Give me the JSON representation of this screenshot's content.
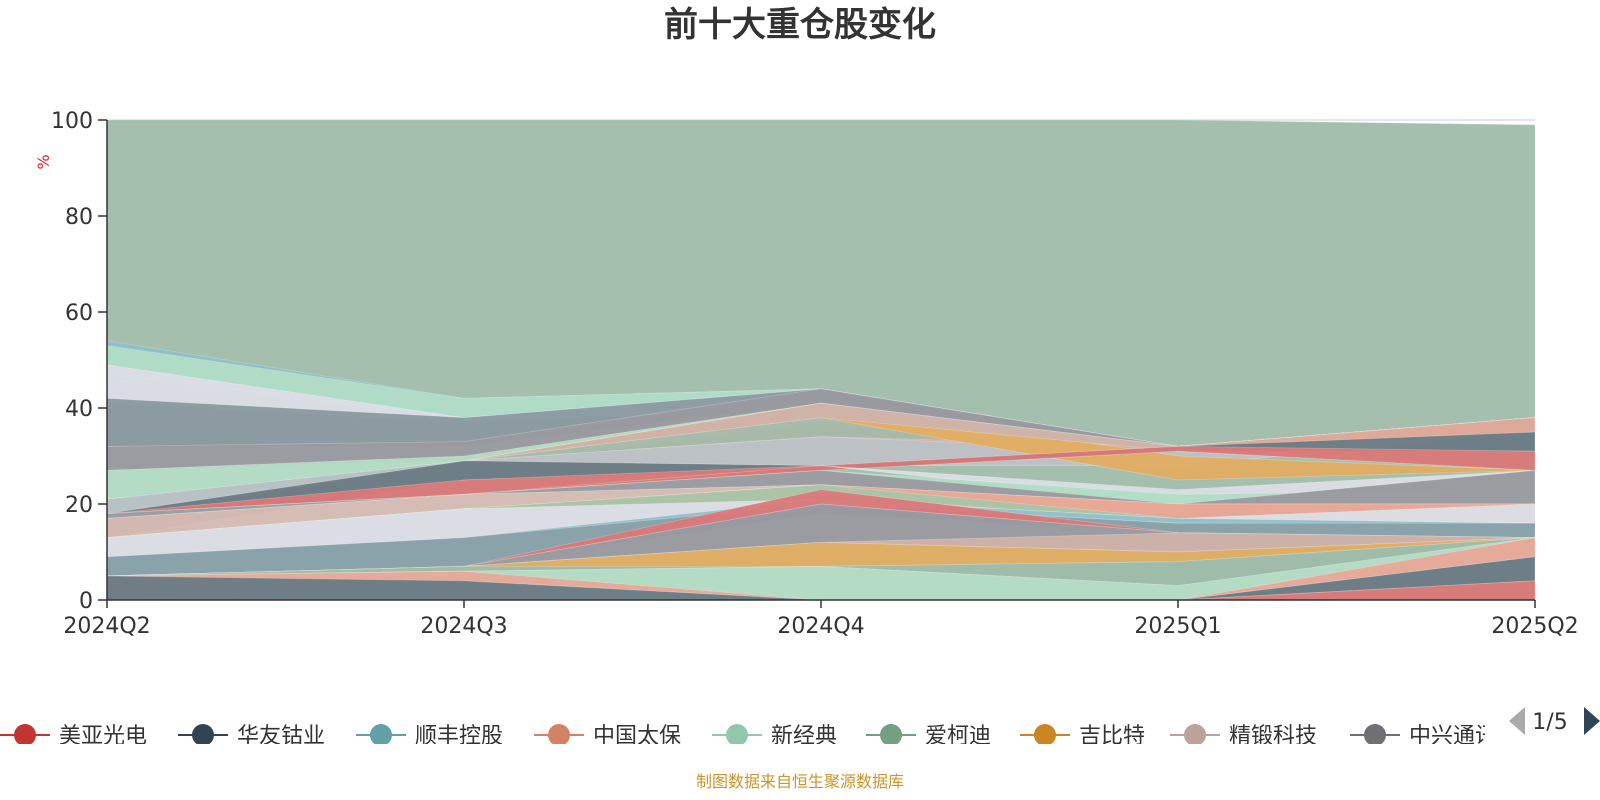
{
  "chart_data": {
    "type": "area",
    "title": "前十大重仓股变化",
    "ylabel": "%",
    "ylim": [
      0,
      100
    ],
    "yticks": [
      0,
      20,
      40,
      60,
      80,
      100
    ],
    "categories": [
      "2024Q2",
      "2024Q3",
      "2024Q4",
      "2025Q1",
      "2025Q2"
    ],
    "grid": true,
    "layers": [
      {
        "color": "#9fbcaa",
        "values": [
          [
            0,
            100
          ],
          [
            0,
            100
          ],
          [
            0,
            100
          ],
          [
            0,
            100
          ],
          [
            0,
            99
          ]
        ]
      },
      {
        "color": "#8fbfc8",
        "values": [
          [
            46,
            54
          ],
          [
            38,
            42
          ],
          [
            43,
            44
          ],
          [
            32,
            32
          ],
          [
            38,
            38
          ]
        ]
      },
      {
        "color": "#b2dcc6",
        "values": [
          [
            47,
            53
          ],
          [
            38,
            42
          ],
          [
            42,
            44
          ],
          [
            32,
            32
          ],
          [
            38,
            38
          ]
        ]
      },
      {
        "color": "#dcdee6",
        "values": [
          [
            41,
            49
          ],
          [
            37,
            38
          ],
          [
            40,
            44
          ],
          [
            32,
            32
          ],
          [
            38,
            38
          ]
        ]
      },
      {
        "color": "#8a99a0",
        "values": [
          [
            32,
            42
          ],
          [
            32,
            38
          ],
          [
            41,
            44
          ],
          [
            31,
            32
          ],
          [
            35,
            38
          ]
        ]
      },
      {
        "color": "#9a9aa0",
        "values": [
          [
            27,
            32
          ],
          [
            29,
            33
          ],
          [
            41,
            44
          ],
          [
            31,
            32
          ],
          [
            35,
            38
          ]
        ]
      },
      {
        "color": "#b5dcc4",
        "values": [
          [
            21,
            27
          ],
          [
            28,
            30
          ],
          [
            37,
            41
          ],
          [
            29,
            32
          ],
          [
            35,
            38
          ]
        ]
      },
      {
        "color": "#a8b8a8",
        "values": [
          [
            17,
            21
          ],
          [
            25,
            29
          ],
          [
            34,
            41
          ],
          [
            29,
            32
          ],
          [
            35,
            38
          ]
        ]
      },
      {
        "color": "#e0a898",
        "values": [
          [
            17,
            18
          ],
          [
            28,
            29
          ],
          [
            28,
            34
          ],
          [
            28,
            32
          ],
          [
            35,
            38
          ]
        ]
      },
      {
        "color": "#b8c2c6",
        "values": [
          [
            17,
            21
          ],
          [
            29,
            29
          ],
          [
            28,
            34
          ],
          [
            28,
            31
          ],
          [
            35,
            35
          ]
        ]
      },
      {
        "color": "#e3ad62",
        "values": [
          [
            13,
            17
          ],
          [
            29,
            29
          ],
          [
            38,
            41
          ],
          [
            25,
            30
          ],
          [
            27,
            27
          ]
        ]
      },
      {
        "color": "#cfb2aa",
        "values": [
          [
            13,
            17
          ],
          [
            29,
            29
          ],
          [
            38,
            41
          ],
          [
            31,
            32
          ],
          [
            27,
            27
          ]
        ]
      },
      {
        "color": "#6a7a84",
        "values": [
          [
            13,
            18
          ],
          [
            25,
            29
          ],
          [
            27,
            28
          ],
          [
            31,
            32
          ],
          [
            31,
            35
          ]
        ]
      },
      {
        "color": "#db7878",
        "values": [
          [
            17,
            18
          ],
          [
            22,
            25
          ],
          [
            27,
            28
          ],
          [
            31,
            32
          ],
          [
            27,
            31
          ]
        ]
      },
      {
        "color": "#dcdee6",
        "values": [
          [
            17,
            18
          ],
          [
            22,
            22
          ],
          [
            28,
            28
          ],
          [
            20,
            23
          ],
          [
            27,
            27
          ]
        ]
      },
      {
        "color": "#b0dcc4",
        "values": [
          [
            17,
            18
          ],
          [
            22,
            22
          ],
          [
            24,
            27
          ],
          [
            20,
            22
          ],
          [
            20,
            23
          ]
        ]
      },
      {
        "color": "#9a9aa0",
        "values": [
          [
            17,
            18
          ],
          [
            22,
            22
          ],
          [
            24,
            27
          ],
          [
            17,
            20
          ],
          [
            20,
            27
          ]
        ]
      },
      {
        "color": "#d8bcb4",
        "values": [
          [
            13,
            17
          ],
          [
            19,
            22
          ],
          [
            22,
            24
          ],
          [
            18,
            20
          ],
          [
            20,
            20
          ]
        ]
      },
      {
        "color": "#e3ad62",
        "values": [
          [
            9,
            13
          ],
          [
            13,
            19
          ],
          [
            22,
            24
          ],
          [
            18,
            20
          ],
          [
            20,
            20
          ]
        ]
      },
      {
        "color": "#e8a898",
        "values": [
          [
            9,
            13
          ],
          [
            13,
            19
          ],
          [
            22,
            24
          ],
          [
            16,
            20
          ],
          [
            16,
            20
          ]
        ]
      },
      {
        "color": "#a8c4a8",
        "values": [
          [
            9,
            13
          ],
          [
            12,
            19
          ],
          [
            22,
            24
          ],
          [
            16,
            17
          ],
          [
            16,
            16
          ]
        ]
      },
      {
        "color": "#dcdee6",
        "values": [
          [
            9,
            13
          ],
          [
            12,
            19
          ],
          [
            20,
            21
          ],
          [
            16,
            17
          ],
          [
            16,
            20
          ]
        ]
      },
      {
        "color": "#8fbfc8",
        "values": [
          [
            5,
            9
          ],
          [
            7,
            13
          ],
          [
            20,
            21
          ],
          [
            16,
            17
          ],
          [
            13,
            16
          ]
        ]
      },
      {
        "color": "#8aa0a8",
        "values": [
          [
            5,
            9
          ],
          [
            7,
            13
          ],
          [
            18,
            20
          ],
          [
            14,
            16
          ],
          [
            13,
            16
          ]
        ]
      },
      {
        "color": "#db7878",
        "values": [
          [
            5,
            5
          ],
          [
            7,
            7
          ],
          [
            20,
            23
          ],
          [
            14,
            14
          ],
          [
            13,
            13
          ]
        ]
      },
      {
        "color": "#9a9aa0",
        "values": [
          [
            5,
            5
          ],
          [
            7,
            7
          ],
          [
            12,
            20
          ],
          [
            10,
            14
          ],
          [
            13,
            13
          ]
        ]
      },
      {
        "color": "#cfb2aa",
        "values": [
          [
            5,
            5
          ],
          [
            7,
            7
          ],
          [
            12,
            12
          ],
          [
            10,
            14
          ],
          [
            13,
            13
          ]
        ]
      },
      {
        "color": "#e3ad62",
        "values": [
          [
            5,
            5
          ],
          [
            6,
            7
          ],
          [
            7,
            12
          ],
          [
            8,
            10
          ],
          [
            13,
            13
          ]
        ]
      },
      {
        "color": "#9fbcaa",
        "values": [
          [
            5,
            5
          ],
          [
            6,
            7
          ],
          [
            7,
            7
          ],
          [
            3,
            8
          ],
          [
            13,
            13
          ]
        ]
      },
      {
        "color": "#b5dcc4",
        "values": [
          [
            0,
            5
          ],
          [
            4,
            6
          ],
          [
            0,
            7
          ],
          [
            0,
            3
          ],
          [
            9,
            13
          ]
        ]
      },
      {
        "color": "#e8a898",
        "values": [
          [
            0,
            5
          ],
          [
            4,
            6
          ],
          [
            0,
            0
          ],
          [
            0,
            0
          ],
          [
            9,
            13
          ]
        ]
      },
      {
        "color": "#6a7a84",
        "values": [
          [
            0,
            5
          ],
          [
            0,
            4
          ],
          [
            0,
            0
          ],
          [
            0,
            0
          ],
          [
            4,
            9
          ]
        ]
      },
      {
        "color": "#db7878",
        "values": [
          [
            0,
            0
          ],
          [
            0,
            0
          ],
          [
            0,
            0
          ],
          [
            0,
            0
          ],
          [
            0,
            4
          ]
        ]
      }
    ],
    "legend": [
      {
        "name": "美亚光电",
        "color": "#c23531"
      },
      {
        "name": "华友钴业",
        "color": "#2f4554"
      },
      {
        "name": "顺丰控股",
        "color": "#61a0a8"
      },
      {
        "name": "中国太保",
        "color": "#d48265"
      },
      {
        "name": "新经典",
        "color": "#91c7ae"
      },
      {
        "name": "爱柯迪",
        "color": "#749f83"
      },
      {
        "name": "吉比特",
        "color": "#ca8622"
      },
      {
        "name": "精锻科技",
        "color": "#bda29a"
      },
      {
        "name": "中兴通讯",
        "color": "#6e7074"
      }
    ],
    "legend_placement": "bottom",
    "legend_page": "1/5"
  },
  "source_note": "制图数据来自恒生聚源数据库"
}
